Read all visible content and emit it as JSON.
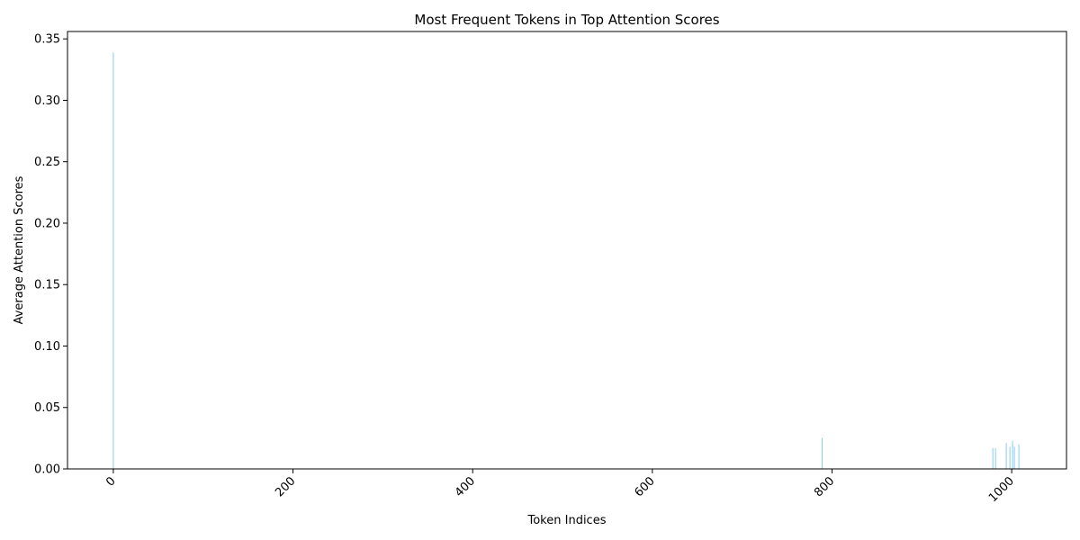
{
  "chart_data": {
    "type": "bar",
    "title": "Most Frequent Tokens in Top Attention Scores",
    "xlabel": "Token Indices",
    "ylabel": "Average Attention Scores",
    "xlim": [
      -51,
      1061
    ],
    "ylim": [
      0,
      0.356
    ],
    "xticks": [
      0,
      200,
      400,
      600,
      800,
      1000
    ],
    "yticks": [
      0.0,
      0.05,
      0.1,
      0.15,
      0.2,
      0.25,
      0.3,
      0.35
    ],
    "ytick_labels": [
      "0.00",
      "0.05",
      "0.10",
      "0.15",
      "0.20",
      "0.25",
      "0.30",
      "0.35"
    ],
    "xtick_rotation": 45,
    "bar_color": "#87ceeb",
    "grid": false,
    "x": [
      0,
      789,
      979,
      982,
      994,
      998,
      1001,
      1003,
      1008
    ],
    "values": [
      0.339,
      0.025,
      0.017,
      0.017,
      0.021,
      0.018,
      0.023,
      0.018,
      0.02
    ]
  }
}
